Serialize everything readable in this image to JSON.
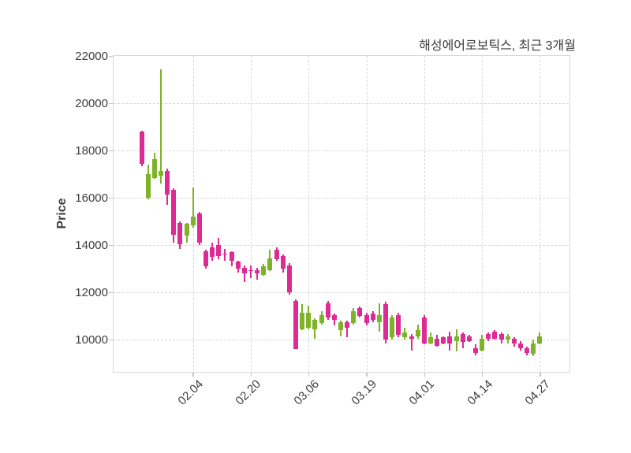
{
  "chart_data": {
    "type": "candlestick",
    "title": "해성에어로보틱스, 최근 3개월",
    "ylabel": "Price",
    "xlabel": "",
    "ylim": [
      8650,
      22000
    ],
    "y_ticks": [
      22000,
      20000,
      18000,
      16000,
      14000,
      12000,
      10000
    ],
    "x_ticks": [
      {
        "index": 8,
        "label": "02.04"
      },
      {
        "index": 17,
        "label": "02.20"
      },
      {
        "index": 26,
        "label": "03.06"
      },
      {
        "index": 35,
        "label": "03.19"
      },
      {
        "index": 44,
        "label": "04.01"
      },
      {
        "index": 53,
        "label": "04.14"
      },
      {
        "index": 62,
        "label": "04.27"
      }
    ],
    "grid": "dashed",
    "legend": "none",
    "candles_format": [
      "open",
      "high",
      "low",
      "close"
    ],
    "candles": [
      [
        18800,
        18850,
        17350,
        17450
      ],
      [
        16000,
        17400,
        15950,
        17000
      ],
      [
        16850,
        17900,
        16800,
        17650
      ],
      [
        16950,
        21450,
        16600,
        17150
      ],
      [
        17150,
        17250,
        15700,
        16150
      ],
      [
        16350,
        16400,
        14100,
        14450
      ],
      [
        14950,
        15000,
        13850,
        14050
      ],
      [
        14400,
        14950,
        14100,
        14900
      ],
      [
        14850,
        16450,
        14750,
        15200
      ],
      [
        15350,
        15400,
        14000,
        14100
      ],
      [
        13750,
        13800,
        13000,
        13100
      ],
      [
        13900,
        14100,
        13350,
        13500
      ],
      [
        14000,
        14300,
        13400,
        13550
      ],
      [
        13650,
        13850,
        13350,
        13600
      ],
      [
        13700,
        13750,
        13100,
        13350
      ],
      [
        13300,
        13350,
        12850,
        13000
      ],
      [
        13050,
        13150,
        12450,
        12800
      ],
      [
        12950,
        13150,
        12600,
        12900
      ],
      [
        12950,
        13050,
        12550,
        12800
      ],
      [
        12750,
        13200,
        12700,
        13100
      ],
      [
        12950,
        13800,
        12900,
        13450
      ],
      [
        13800,
        13900,
        13350,
        13400
      ],
      [
        13550,
        13600,
        12850,
        13000
      ],
      [
        13150,
        13250,
        11900,
        12000
      ],
      [
        11650,
        11700,
        9600,
        9600
      ],
      [
        10450,
        11500,
        10400,
        11150
      ],
      [
        10500,
        11450,
        10450,
        11150
      ],
      [
        10450,
        10900,
        10050,
        10850
      ],
      [
        10700,
        11200,
        10650,
        11050
      ],
      [
        11550,
        11650,
        10850,
        10950
      ],
      [
        11050,
        11100,
        10600,
        10850
      ],
      [
        10400,
        10800,
        10150,
        10750
      ],
      [
        10750,
        10800,
        10100,
        10500
      ],
      [
        10700,
        11350,
        10650,
        11200
      ],
      [
        11350,
        11400,
        10950,
        11000
      ],
      [
        11050,
        11150,
        10600,
        10700
      ],
      [
        11100,
        11200,
        10750,
        10850
      ],
      [
        10750,
        11550,
        10350,
        11050
      ],
      [
        11500,
        11600,
        9850,
        10000
      ],
      [
        10100,
        11050,
        10000,
        10950
      ],
      [
        11050,
        11150,
        10100,
        10200
      ],
      [
        10100,
        10500,
        10000,
        10300
      ],
      [
        10150,
        10250,
        9550,
        10050
      ],
      [
        10150,
        10650,
        10050,
        10400
      ],
      [
        10950,
        11050,
        9800,
        9850
      ],
      [
        9850,
        10300,
        9800,
        10100
      ],
      [
        10050,
        10200,
        9700,
        9750
      ],
      [
        10100,
        10150,
        9800,
        9850
      ],
      [
        10150,
        10350,
        9550,
        9850
      ],
      [
        9950,
        10450,
        9500,
        10150
      ],
      [
        10250,
        10300,
        9650,
        9900
      ],
      [
        10150,
        10200,
        9900,
        9950
      ],
      [
        9650,
        9800,
        9350,
        9450
      ],
      [
        9550,
        10200,
        9500,
        10050
      ],
      [
        10250,
        10300,
        9950,
        10050
      ],
      [
        10350,
        10400,
        10000,
        10050
      ],
      [
        10250,
        10300,
        9850,
        10000
      ],
      [
        10000,
        10250,
        9850,
        10150
      ],
      [
        10050,
        10100,
        9700,
        9850
      ],
      [
        9850,
        9950,
        9550,
        9650
      ],
      [
        9650,
        9700,
        9350,
        9450
      ],
      [
        9400,
        10000,
        9300,
        9850
      ],
      [
        9850,
        10300,
        9800,
        10150
      ]
    ]
  },
  "colors": {
    "up": "#7eb228",
    "down": "#dd2a94",
    "grid": "#d7d7d7",
    "frame": "#d8d8d8",
    "text": "#3d3d3d",
    "background": "#ffffff"
  }
}
